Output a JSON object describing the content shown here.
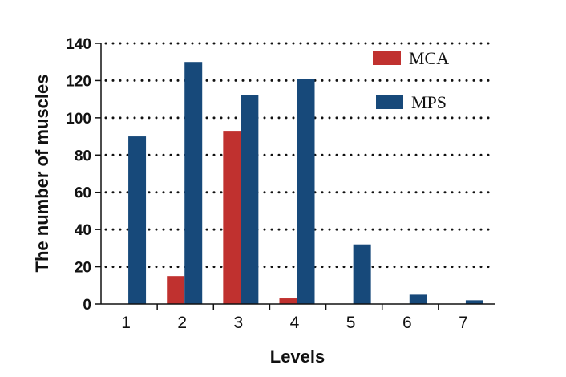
{
  "chart_data": {
    "type": "bar",
    "title": "",
    "xlabel": "Levels",
    "ylabel": "The number of muscles",
    "categories": [
      "1",
      "2",
      "3",
      "4",
      "5",
      "6",
      "7"
    ],
    "series": [
      {
        "name": "MCA",
        "color": "#c0312f",
        "values": [
          0,
          15,
          93,
          3,
          0,
          0,
          0
        ]
      },
      {
        "name": "MPS",
        "color": "#17497a",
        "values": [
          90,
          130,
          112,
          121,
          32,
          5,
          2
        ]
      }
    ],
    "ylim": [
      0,
      140
    ],
    "yticks": [
      0,
      20,
      40,
      60,
      80,
      100,
      120,
      140
    ],
    "grid": "dotted horizontal",
    "legend": "top-right"
  }
}
